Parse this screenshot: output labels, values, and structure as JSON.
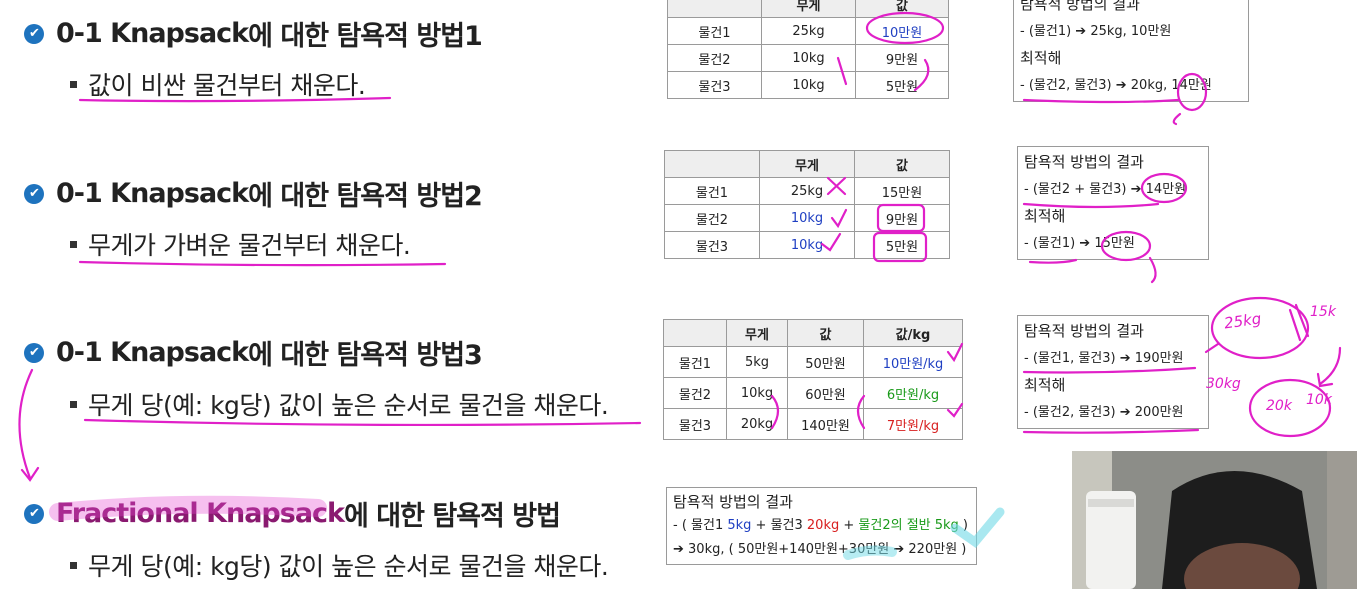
{
  "sections": [
    {
      "heading_prefix": "0-1 Knapsack",
      "heading_suffix": "에 대한 탐욕적 방법1",
      "bullet": "값이 비싼 물건부터 채운다."
    },
    {
      "heading_prefix": "0-1 Knapsack",
      "heading_suffix": "에 대한 탐욕적 방법2",
      "bullet": "무게가 가벼운 물건부터 채운다."
    },
    {
      "heading_prefix": "0-1 Knapsack",
      "heading_suffix": "에 대한 탐욕적 방법3",
      "bullet": "무게 당(예: kg당) 값이 높은 순서로 물건을 채운다."
    },
    {
      "heading_prefix": "Fractional Knapsack",
      "heading_suffix": "에 대한 탐욕적 방법",
      "bullet": "무게 당(예: kg당) 값이 높은 순서로 물건을 채운다."
    }
  ],
  "table1": {
    "headers": [
      "",
      "무게",
      "값"
    ],
    "rows": [
      [
        "물건1",
        "25kg",
        "10만원"
      ],
      [
        "물건2",
        "10kg",
        "9만원"
      ],
      [
        "물건3",
        "10kg",
        "5만원"
      ]
    ]
  },
  "table2": {
    "headers": [
      "",
      "무게",
      "값"
    ],
    "rows": [
      [
        "물건1",
        "25kg",
        "15만원"
      ],
      [
        "물건2",
        "10kg",
        "9만원"
      ],
      [
        "물건3",
        "10kg",
        "5만원"
      ]
    ]
  },
  "table3": {
    "headers": [
      "",
      "무게",
      "값",
      "값/kg"
    ],
    "rows": [
      [
        "물건1",
        "5kg",
        "50만원",
        "10만원/kg"
      ],
      [
        "물건2",
        "10kg",
        "60만원",
        "6만원/kg"
      ],
      [
        "물건3",
        "20kg",
        "140만원",
        "7만원/kg"
      ]
    ]
  },
  "result1": {
    "title": "탐욕적 방법의 결과",
    "line1": "- (물건1) ➔ 25kg, 10만원",
    "opt_title": "최적해",
    "line2": "- (물건2, 물건3) ➔ 20kg, 14만원"
  },
  "result2": {
    "title": "탐욕적 방법의 결과",
    "line1": "- (물건2 + 물건3) ➔ 14만원",
    "opt_title": "최적해",
    "line2": "- (물건1) ➔ 15만원"
  },
  "result3": {
    "title": "탐욕적 방법의 결과",
    "line1": "- (물건1, 물건3) ➔ 190만원",
    "opt_title": "최적해",
    "line2": "- (물건2, 물건3) ➔ 200만원"
  },
  "result4": {
    "title": "탐욕적 방법의 결과",
    "l1_a": "- ( 물건1 ",
    "l1_b": "5kg",
    "l1_c": " + 물건3 ",
    "l1_d": "20kg",
    "l1_e": " + ",
    "l1_f": "물건2의 절반 5kg",
    "l1_g": " )",
    "line2": "➔ 30kg, ( 50만원+140만원+30만원 ➔ 220만원 )"
  },
  "handwriting": {
    "note1": "25kg",
    "note2": "30kg",
    "note3": "20k",
    "note4": "10k",
    "note5": "15k"
  },
  "colors": {
    "check": "#1e73be",
    "ink": "#e020c8",
    "blue_text": "#1f3fc2",
    "green_text": "#1a9a1a",
    "red_text": "#d82020"
  }
}
